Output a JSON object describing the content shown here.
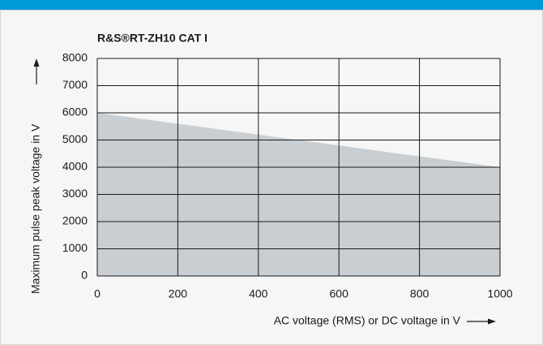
{
  "chart_data": {
    "type": "area",
    "title": "R&S®RT-ZH10 CAT I",
    "x_label": "AC voltage (RMS) or DC voltage in V",
    "y_label": "Maximum pulse peak voltage in V",
    "x": [
      0,
      1000
    ],
    "values": [
      6000,
      4000
    ],
    "color": "#c9ced2",
    "xlim": [
      0,
      1000
    ],
    "xticks": [
      0,
      200,
      400,
      600,
      800,
      1000
    ],
    "ylim": [
      0,
      8000
    ],
    "yticks": [
      0,
      1000,
      2000,
      3000,
      4000,
      5000,
      6000,
      7000,
      8000
    ],
    "grid": true
  }
}
